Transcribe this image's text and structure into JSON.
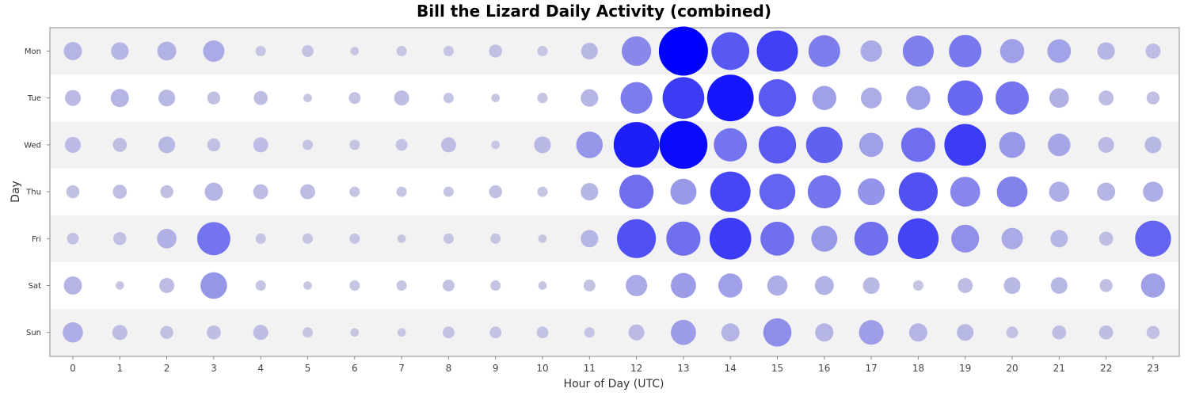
{
  "chart_data": {
    "type": "scatter",
    "title": "Bill the Lizard Daily Activity (combined)",
    "xlabel": "Hour of Day (UTC)",
    "ylabel": "Day",
    "x_categories": [
      "0",
      "1",
      "2",
      "3",
      "4",
      "5",
      "6",
      "7",
      "8",
      "9",
      "10",
      "11",
      "12",
      "13",
      "14",
      "15",
      "16",
      "17",
      "18",
      "19",
      "20",
      "21",
      "22",
      "23"
    ],
    "y_categories": [
      "Mon",
      "Tue",
      "Wed",
      "Thu",
      "Fri",
      "Sat",
      "Sun"
    ],
    "value_scale_max": 100,
    "colors": {
      "low": "#c8c8e2",
      "high": "#0000ff",
      "band_light": "#f2f2f2",
      "band_white": "#ffffff",
      "plot_border": "#888888"
    },
    "values": [
      [
        10,
        9,
        11,
        15,
        2,
        3,
        1,
        2,
        2,
        4,
        2,
        8,
        32,
        100,
        56,
        68,
        38,
        15,
        36,
        40,
        20,
        19,
        9,
        6
      ],
      [
        7,
        10,
        8,
        4,
        5,
        1,
        3,
        6,
        2,
        1,
        2,
        9,
        38,
        70,
        89,
        55,
        20,
        14,
        20,
        48,
        42,
        12,
        6,
        4
      ],
      [
        7,
        5,
        8,
        4,
        6,
        2,
        2,
        3,
        6,
        1,
        8,
        25,
        85,
        95,
        42,
        55,
        52,
        20,
        45,
        70,
        24,
        17,
        7,
        8
      ],
      [
        4,
        5,
        4,
        10,
        6,
        6,
        2,
        2,
        2,
        4,
        2,
        9,
        45,
        24,
        65,
        50,
        42,
        26,
        60,
        33,
        35,
        13,
        10,
        13
      ],
      [
        3,
        4,
        12,
        42,
        2,
        2,
        2,
        1,
        2,
        2,
        1,
        9,
        60,
        45,
        70,
        44,
        24,
        44,
        66,
        28,
        15,
        9,
        5,
        50
      ],
      [
        10,
        1,
        6,
        25,
        2,
        1,
        2,
        2,
        3,
        2,
        1,
        3,
        15,
        22,
        20,
        13,
        11,
        8,
        2,
        6,
        8,
        8,
        4,
        20
      ],
      [
        13,
        6,
        4,
        5,
        6,
        2,
        1,
        1,
        3,
        3,
        3,
        2,
        7,
        22,
        10,
        29,
        10,
        21,
        10,
        8,
        3,
        5,
        5,
        4
      ]
    ]
  }
}
